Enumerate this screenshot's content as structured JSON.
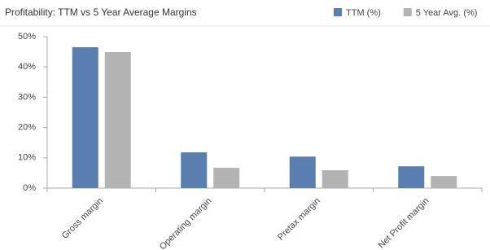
{
  "chart_data": {
    "type": "bar",
    "title": "Profitability: TTM vs 5 Year Average Margins",
    "categories": [
      "Gross margin",
      "Operating margin",
      "Pretax margin",
      "Net Profit margin"
    ],
    "series": [
      {
        "name": "TTM (%)",
        "color": "#5a7eb0",
        "values": [
          46.5,
          11.8,
          10.4,
          7.2
        ]
      },
      {
        "name": "5 Year Avg. (%)",
        "color": "#b3b3b3",
        "values": [
          44.9,
          6.7,
          5.9,
          4.0
        ]
      }
    ],
    "ylim": [
      0,
      50
    ],
    "yticks": [
      {
        "value": 0,
        "label": "0%"
      },
      {
        "value": 10,
        "label": "10%"
      },
      {
        "value": 20,
        "label": "20%"
      },
      {
        "value": 30,
        "label": "30%"
      },
      {
        "value": 40,
        "label": "40%"
      },
      {
        "value": 50,
        "label": "50%"
      }
    ],
    "grid": false
  }
}
